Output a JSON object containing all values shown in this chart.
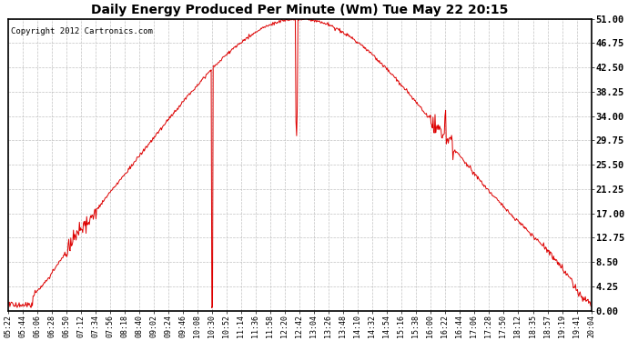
{
  "title": "Daily Energy Produced Per Minute (Wm) Tue May 22 20:15",
  "copyright": "Copyright 2012 Cartronics.com",
  "line_color": "#dd0000",
  "background_color": "#ffffff",
  "grid_color": "#bbbbbb",
  "y_ticks": [
    0.0,
    4.25,
    8.5,
    12.75,
    17.0,
    21.25,
    25.5,
    29.75,
    34.0,
    38.25,
    42.5,
    46.75,
    51.0
  ],
  "ymin": 0.0,
  "ymax": 51.0,
  "x_tick_labels": [
    "05:22",
    "05:44",
    "06:06",
    "06:28",
    "06:50",
    "07:12",
    "07:34",
    "07:56",
    "08:18",
    "08:40",
    "09:02",
    "09:24",
    "09:46",
    "10:08",
    "10:30",
    "10:52",
    "11:14",
    "11:36",
    "11:58",
    "12:20",
    "12:42",
    "13:04",
    "13:26",
    "13:48",
    "14:10",
    "14:32",
    "14:54",
    "15:16",
    "15:38",
    "16:00",
    "16:22",
    "16:44",
    "17:06",
    "17:28",
    "17:50",
    "18:12",
    "18:35",
    "18:57",
    "19:19",
    "19:41",
    "20:04"
  ]
}
